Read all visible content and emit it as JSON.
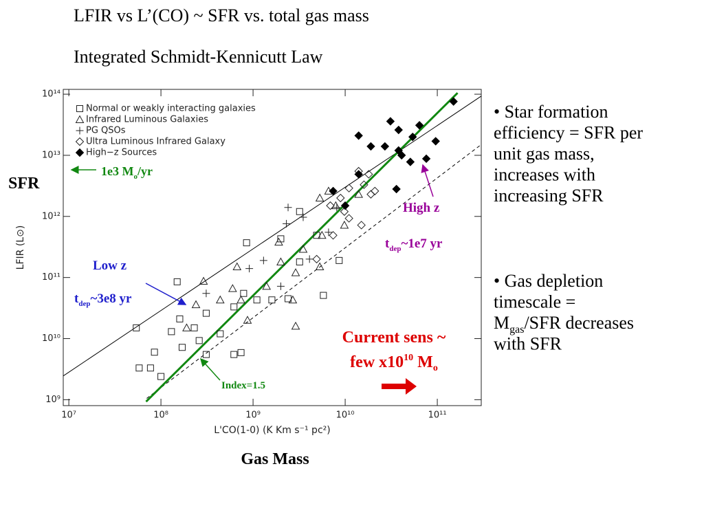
{
  "slide": {
    "title_lines": [
      "LFIR vs L’(CO)  ~  SFR  vs. total gas mass",
      "Integrated Schmidt-Kennicutt Law"
    ],
    "bullets": [
      [
        [
          {
            "text": "• Star formation"
          }
        ],
        [
          {
            "text": "efficiency = SFR per"
          }
        ],
        [
          {
            "text": "unit gas mass,"
          }
        ],
        [
          {
            "text": "increases with"
          }
        ],
        [
          {
            "text": "increasing SFR"
          }
        ]
      ],
      [
        [
          {
            "text": "• Gas depletion"
          }
        ],
        [
          {
            "text": "timescale ="
          }
        ],
        [
          {
            "text": "M"
          },
          {
            "text": "gas",
            "shift": "sub"
          },
          {
            "text": "/SFR decreases"
          }
        ],
        [
          {
            "text": "with SFR"
          }
        ]
      ]
    ],
    "annotations": [
      {
        "parts": [
          {
            "text": "SFR"
          }
        ],
        "color": "#000000"
      },
      {
        "parts": [
          {
            "text": "1e3 M"
          },
          {
            "text": "o",
            "shift": "sub"
          },
          {
            "text": "/yr"
          }
        ],
        "color": "#118811"
      },
      {
        "parts": [
          {
            "text": "Low z"
          }
        ],
        "color": "#1f1fcc"
      },
      {
        "parts": [
          {
            "text": "t"
          },
          {
            "text": "dep",
            "shift": "sub"
          },
          {
            "text": "~3e8 yr"
          }
        ],
        "color": "#1f1fcc"
      },
      {
        "parts": [
          {
            "text": "High z"
          }
        ],
        "color": "#990099"
      },
      {
        "parts": [
          {
            "text": "t"
          },
          {
            "text": "dep",
            "shift": "sub"
          },
          {
            "text": "~1e7 yr"
          }
        ],
        "color": "#990099"
      },
      {
        "parts": [
          {
            "text": "Current sens ~"
          }
        ],
        "color": "#dd0000"
      },
      {
        "parts": [
          {
            "text": "few x10"
          },
          {
            "text": "10",
            "shift": "super"
          },
          {
            "text": " M"
          },
          {
            "text": "o",
            "shift": "sub"
          }
        ],
        "color": "#dd0000"
      },
      {
        "parts": [
          {
            "text": "Index=1.5"
          }
        ],
        "color": "#118811"
      },
      {
        "parts": [
          {
            "text": "Gas Mass"
          }
        ],
        "color": "#000000"
      }
    ]
  },
  "chart_data": {
    "type": "scatter",
    "x_label": "L'CO(1-0) (K Km s⁻¹ pc²)",
    "y_label": "LFIR (L⊙)",
    "x_log": true,
    "y_log": true,
    "xlim": [
      8700000.0,
      300000000000.0
    ],
    "ylim": [
      800000000.0,
      120000000000000.0
    ],
    "xticks": [
      {
        "value": 10000000.0,
        "label": "10⁷"
      },
      {
        "value": 100000000.0,
        "label": "10⁸"
      },
      {
        "value": 1000000000.0,
        "label": "10⁹"
      },
      {
        "value": 10000000000.0,
        "label": "10¹⁰"
      },
      {
        "value": 100000000000.0,
        "label": "10¹¹"
      }
    ],
    "yticks": [
      {
        "value": 1000000000.0,
        "label": "10⁹"
      },
      {
        "value": 10000000000.0,
        "label": "10¹⁰"
      },
      {
        "value": 100000000000.0,
        "label": "10¹¹"
      },
      {
        "value": 1000000000000.0,
        "label": "10¹²"
      },
      {
        "value": 10000000000000.0,
        "label": "10¹³"
      },
      {
        "value": 100000000000000.0,
        "label": "10¹⁴"
      }
    ],
    "legend": "upper left",
    "series": [
      {
        "name": "Normal or weakly interacting galaxies",
        "marker": "square",
        "color": "#222222",
        "x": [
          58000000.0,
          77000000.0,
          100000000.0,
          85000000.0,
          54000000.0,
          160000000.0,
          130000000.0,
          170000000.0,
          230000000.0,
          310000000.0,
          440000000.0,
          620000000.0,
          740000000.0,
          620000000.0,
          790000000.0,
          1100000000.0,
          1600000000.0,
          2400000000.0,
          3200000000.0,
          5800000000.0,
          8600000000.0,
          3200000000.0,
          4900000000.0,
          850000000.0,
          150000000.0,
          2000000000.0,
          260000000.0,
          310000000.0
        ],
        "y": [
          3300000000.0,
          3300000000.0,
          2400000000.0,
          6000000000.0,
          15000000000.0,
          21000000000.0,
          13000000000.0,
          7200000000.0,
          15000000000.0,
          26000000000.0,
          12000000000.0,
          5500000000.0,
          5900000000.0,
          33000000000.0,
          55000000000.0,
          43000000000.0,
          43000000000.0,
          45000000000.0,
          180000000000.0,
          51000000000.0,
          190000000000.0,
          1200000000000.0,
          490000000000.0,
          370000000000.0,
          85000000000.0,
          430000000000.0,
          9300000000.0,
          5500000000.0
        ]
      },
      {
        "name": "Infrared Luminous Galaxies",
        "marker": "triangle",
        "color": "#222222",
        "x": [
          290000000.0,
          240000000.0,
          600000000.0,
          740000000.0,
          1900000000.0,
          2000000000.0,
          2900000000.0,
          2700000000.0,
          5300000000.0,
          5600000000.0,
          5300000000.0,
          6600000000.0,
          7900000000.0,
          14000000000.0,
          9800000000.0,
          3500000000.0,
          1400000000.0,
          870000000.0,
          2900000000.0,
          190000000.0,
          440000000.0,
          670000000.0
        ],
        "y": [
          87000000000.0,
          36000000000.0,
          66000000000.0,
          43000000000.0,
          380000000000.0,
          180000000000.0,
          120000000000.0,
          43000000000.0,
          150000000000.0,
          490000000000.0,
          2000000000000.0,
          2600000000000.0,
          1500000000000.0,
          2300000000000.0,
          720000000000.0,
          290000000000.0,
          72000000000.0,
          20000000000.0,
          16000000000.0,
          15000000000.0,
          43000000000.0,
          150000000000.0
        ]
      },
      {
        "name": "PG QSOs",
        "marker": "plus",
        "color": "#222222",
        "x": [
          310000000.0,
          910000000.0,
          1300000000.0,
          2300000000.0,
          2400000000.0,
          3500000000.0,
          6600000000.0,
          8100000000.0,
          4100000000.0,
          2000000000.0
        ],
        "y": [
          55000000000.0,
          140000000000.0,
          190000000000.0,
          760000000000.0,
          1400000000000.0,
          970000000000.0,
          550000000000.0,
          1400000000000.0,
          200000000000.0,
          72000000000.0
        ]
      },
      {
        "name": "Ultra Luminous Infrared Galaxy",
        "marker": "diamond",
        "color": "#222222",
        "x": [
          6900000000.0,
          8900000000.0,
          11000000000.0,
          14000000000.0,
          18000000000.0,
          19000000000.0,
          9800000000.0,
          11000000000.0,
          15000000000.0,
          4900000000.0,
          7400000000.0,
          16000000000.0,
          21000000000.0
        ],
        "y": [
          1500000000000.0,
          2000000000000.0,
          2900000000000.0,
          5500000000000.0,
          4900000000000.0,
          2300000000000.0,
          1200000000000.0,
          930000000000.0,
          720000000000.0,
          200000000000.0,
          490000000000.0,
          3300000000000.0,
          2600000000000.0
        ]
      },
      {
        "name": "High−z Sources",
        "marker": "filled-diamond",
        "color": "#000000",
        "x": [
          7400000000.0,
          10000000000.0,
          14000000000.0,
          14000000000.0,
          19000000000.0,
          27000000000.0,
          31000000000.0,
          38000000000.0,
          38000000000.0,
          41000000000.0,
          51000000000.0,
          54000000000.0,
          64000000000.0,
          76000000000.0,
          96000000000.0,
          150000000000.0,
          36000000000.0
        ],
        "y": [
          2600000000000.0,
          1500000000000.0,
          4900000000000.0,
          21000000000000.0,
          14000000000000.0,
          14000000000000.0,
          36000000000000.0,
          12000000000000.0,
          26000000000000.0,
          10000000000000.0,
          7800000000000.0,
          20000000000000.0,
          31000000000000.0,
          8800000000000.0,
          17000000000000.0,
          76000000000000.0,
          2800000000000.0
        ]
      }
    ],
    "lines": [
      {
        "x": [
          8700000.0,
          300000000000.0
        ],
        "y": [
          2450000000.0,
          93000000000000.0
        ],
        "color": "#000000",
        "dash": false,
        "width": 1
      },
      {
        "x": [
          70000000.0,
          300000000000.0
        ],
        "y": [
          1050000000.0,
          15000000000000.0
        ],
        "color": "#000000",
        "dash": true,
        "width": 1
      },
      {
        "x": [
          69000000.0,
          166000000000.0
        ],
        "y": [
          930000000.0,
          105000000000000.0
        ],
        "color": "#118811",
        "dash": false,
        "width": 3
      }
    ]
  }
}
